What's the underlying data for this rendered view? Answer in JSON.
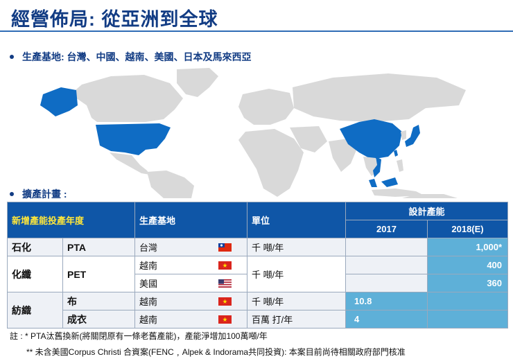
{
  "title": "經營佈局: 從亞洲到全球",
  "bullets": {
    "production": "生產基地: 台灣、中國、越南、美國、日本及馬來西亞",
    "expansion": "擴產計畫 :"
  },
  "table": {
    "headers": {
      "year": "新增產能投產年度",
      "site": "生產基地",
      "unit": "單位",
      "capacity": "設計產能",
      "y2017": "2017",
      "y2018": "2018(E)"
    },
    "rows": [
      {
        "group": "石化",
        "product": "PTA",
        "site": "台灣",
        "flag": "taiwan-flag-icon",
        "unit": "千 噸/年",
        "v2017": "",
        "v2018": "1,000*"
      },
      {
        "group": "化纖",
        "product": "PET",
        "site": "越南",
        "flag": "vietnam-flag-icon",
        "unit": "千 噸/年",
        "v2017": "",
        "v2018": "400"
      },
      {
        "group": "",
        "product": "",
        "site": "美國",
        "flag": "usa-flag-icon",
        "unit": "",
        "v2017": "",
        "v2018": "360"
      },
      {
        "group": "紡織",
        "product": "布",
        "site": "越南",
        "flag": "vietnam-flag-icon",
        "unit": "千 噸/年",
        "v2017": "10.8",
        "v2018": ""
      },
      {
        "group": "",
        "product": "成衣",
        "site": "越南",
        "flag": "vietnam-flag-icon",
        "unit": "百萬 打/年",
        "v2017": "4",
        "v2018": ""
      }
    ]
  },
  "notes": {
    "n1": "註 : *  PTA汰舊換新(將關閉原有一條老舊產能)，產能淨增加100萬噸/年",
    "n2": "** 未含美國Corpus Christi 合資案(FENC﹐Alpek & Indorama共同投資): 本案目前尚待相關政府部門核准"
  },
  "colors": {
    "title": "#123c84",
    "header_bg": "#0f56a7",
    "header_highlight": "#ffe73a",
    "capacity_fill": "#5eb0d8",
    "map_land": "#d9d9d9",
    "map_highlight": "#0f6cc4"
  }
}
